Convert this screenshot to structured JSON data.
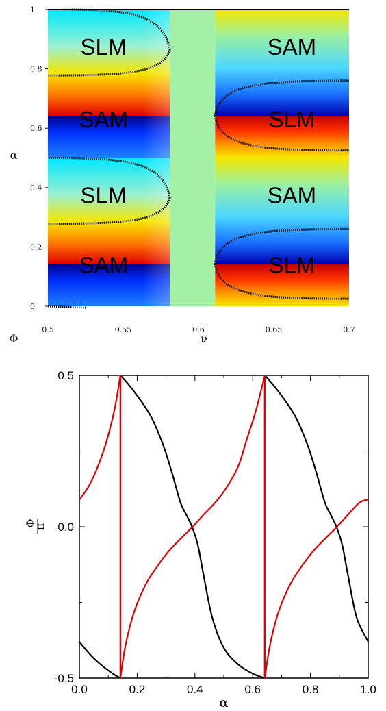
{
  "chart_data": [
    {
      "type": "heatmap",
      "xlabel": "ν",
      "ylabel": "α",
      "colorbar_label": "Φ",
      "xlim": [
        0.5,
        0.7
      ],
      "ylim": [
        0,
        1
      ],
      "x_ticks": [
        {
          "value": 0.5,
          "label": "0.5"
        },
        {
          "value": 0.55,
          "label": "0.55"
        },
        {
          "value": 0.6,
          "label": "0.6"
        },
        {
          "value": 0.65,
          "label": "0.65"
        },
        {
          "value": 0.7,
          "label": "0.7"
        }
      ],
      "y_ticks": [
        {
          "value": 0,
          "label": "0"
        },
        {
          "value": 0.2,
          "label": "0.2"
        },
        {
          "value": 0.4,
          "label": "0.4"
        },
        {
          "value": 0.6,
          "label": "0.6"
        },
        {
          "value": 0.8,
          "label": "0.8"
        },
        {
          "value": 1,
          "label": "1"
        }
      ],
      "gap_region": {
        "nu_from": 0.581,
        "nu_to": 0.611,
        "color": "#a3f0a6"
      },
      "region_labels": [
        {
          "text": "SLM",
          "nu": 0.537,
          "alpha": 0.875
        },
        {
          "text": "SAM",
          "nu": 0.537,
          "alpha": 0.63
        },
        {
          "text": "SLM",
          "nu": 0.537,
          "alpha": 0.375
        },
        {
          "text": "SAM",
          "nu": 0.537,
          "alpha": 0.14
        },
        {
          "text": "SAM",
          "nu": 0.662,
          "alpha": 0.875
        },
        {
          "text": "SLM",
          "nu": 0.662,
          "alpha": 0.63
        },
        {
          "text": "SAM",
          "nu": 0.662,
          "alpha": 0.375
        },
        {
          "text": "SLM",
          "nu": 0.662,
          "alpha": 0.14
        }
      ],
      "discontinuity_alphas": [
        0.142,
        0.642
      ],
      "boundary_curves": [
        {
          "side": "left",
          "tip": {
            "nu": 0.581,
            "alpha": 0.865
          },
          "ends": [
            {
              "nu": 0.51,
              "alpha": 1.0
            },
            {
              "nu": 0.5,
              "alpha": 0.778
            }
          ]
        },
        {
          "side": "left",
          "tip": {
            "nu": 0.581,
            "alpha": 0.365
          },
          "ends": [
            {
              "nu": 0.5,
              "alpha": 0.5
            },
            {
              "nu": 0.5,
              "alpha": 0.278
            }
          ]
        },
        {
          "side": "left",
          "tip": {
            "nu": 0.5,
            "alpha": 0.0
          },
          "ends": [
            {
              "nu": 0.525,
              "alpha": -0.005
            }
          ]
        },
        {
          "side": "right",
          "tip": {
            "nu": 0.611,
            "alpha": 0.642
          },
          "ends": [
            {
              "nu": 0.7,
              "alpha": 0.76
            },
            {
              "nu": 0.7,
              "alpha": 0.525
            }
          ]
        },
        {
          "side": "right",
          "tip": {
            "nu": 0.611,
            "alpha": 0.142
          },
          "ends": [
            {
              "nu": 0.7,
              "alpha": 0.26
            },
            {
              "nu": 0.7,
              "alpha": 0.025
            }
          ]
        }
      ]
    },
    {
      "type": "line",
      "xlabel": "α",
      "ylabel_numerator": "Φ",
      "ylabel_denominator": "π",
      "xlim": [
        0,
        1
      ],
      "ylim": [
        -0.5,
        0.5
      ],
      "x_ticks": [
        {
          "value": 0.0,
          "label": "0.0"
        },
        {
          "value": 0.2,
          "label": "0.2"
        },
        {
          "value": 0.4,
          "label": "0.4"
        },
        {
          "value": 0.6,
          "label": "0.6"
        },
        {
          "value": 0.8,
          "label": "0.8"
        },
        {
          "value": 1.0,
          "label": "1.0"
        }
      ],
      "y_ticks": [
        {
          "value": -0.5,
          "label": "-0.5"
        },
        {
          "value": 0.0,
          "label": "0.0"
        },
        {
          "value": 0.5,
          "label": "0.5"
        }
      ],
      "series": [
        {
          "color": "#000000",
          "x": [
            0.0,
            0.04,
            0.08,
            0.12,
            0.142,
            0.142,
            0.17,
            0.21,
            0.25,
            0.29,
            0.32,
            0.35,
            0.37,
            0.39,
            0.41,
            0.43,
            0.46,
            0.5,
            0.55,
            0.6,
            0.642,
            0.642,
            0.67,
            0.71,
            0.75,
            0.79,
            0.82,
            0.85,
            0.87,
            0.89,
            0.91,
            0.93,
            0.96,
            1.0
          ],
          "y": [
            -0.38,
            -0.425,
            -0.46,
            -0.488,
            -0.5,
            0.5,
            0.47,
            0.42,
            0.36,
            0.27,
            0.18,
            0.08,
            0.04,
            0.0,
            -0.06,
            -0.16,
            -0.3,
            -0.4,
            -0.455,
            -0.485,
            -0.5,
            0.5,
            0.47,
            0.42,
            0.36,
            0.27,
            0.18,
            0.08,
            0.04,
            0.0,
            -0.06,
            -0.16,
            -0.3,
            -0.38
          ]
        },
        {
          "color": "#e00000",
          "x": [
            0.0,
            0.03,
            0.06,
            0.09,
            0.12,
            0.142,
            0.142,
            0.16,
            0.19,
            0.23,
            0.27,
            0.31,
            0.35,
            0.392,
            0.43,
            0.47,
            0.51,
            0.55,
            0.58,
            0.61,
            0.642,
            0.642,
            0.66,
            0.69,
            0.73,
            0.77,
            0.81,
            0.85,
            0.892,
            0.93,
            0.97,
            1.0
          ],
          "y": [
            0.09,
            0.13,
            0.19,
            0.27,
            0.38,
            0.5,
            -0.5,
            -0.39,
            -0.28,
            -0.19,
            -0.13,
            -0.08,
            -0.04,
            0.0,
            0.04,
            0.08,
            0.13,
            0.2,
            0.29,
            0.38,
            0.5,
            -0.5,
            -0.39,
            -0.28,
            -0.19,
            -0.13,
            -0.08,
            -0.04,
            0.0,
            0.04,
            0.08,
            0.09
          ]
        }
      ]
    }
  ]
}
